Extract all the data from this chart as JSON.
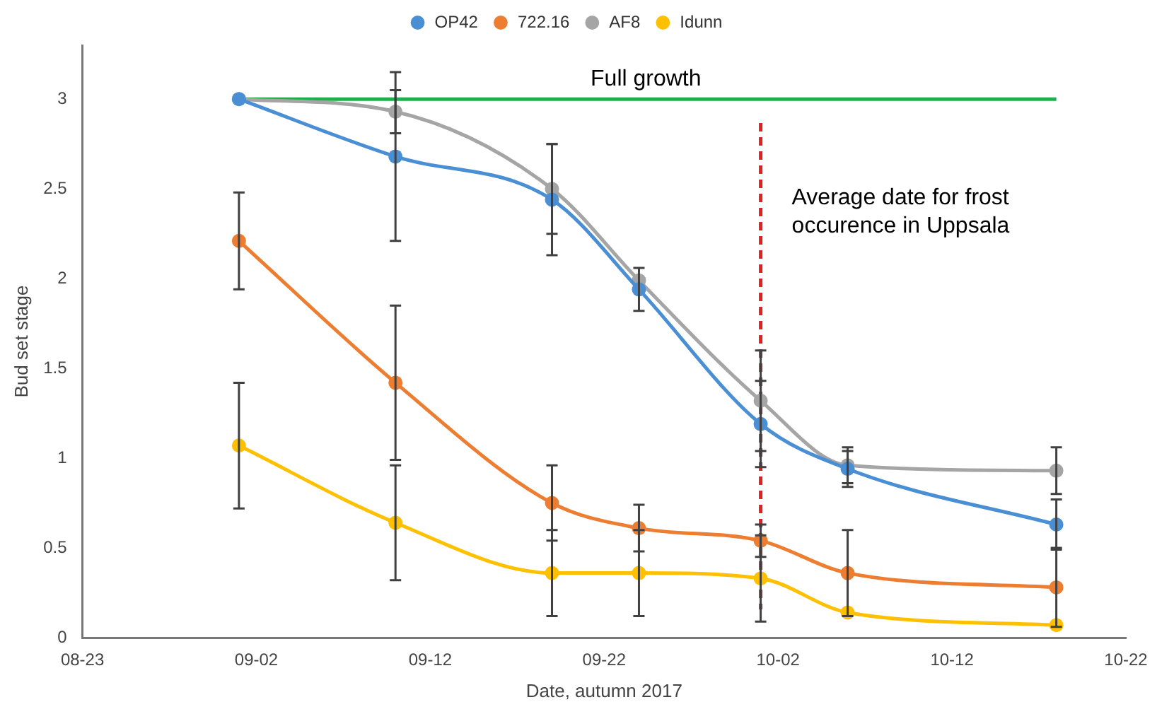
{
  "chart_data": {
    "type": "line",
    "xlabel": "Date, autumn 2017",
    "ylabel": "Bud set stage",
    "x": [
      "2017-09-01",
      "2017-09-10",
      "2017-09-19",
      "2017-09-24",
      "2017-10-01",
      "2017-10-06",
      "2017-10-18"
    ],
    "series": [
      {
        "name": "OP42",
        "color": "#4a8fd4",
        "values": [
          3.0,
          2.68,
          2.44,
          1.94,
          1.19,
          0.94,
          0.63
        ],
        "errors": [
          null,
          0.47,
          0.31,
          0.12,
          0.24,
          0.1,
          0.14
        ]
      },
      {
        "name": "722.16",
        "color": "#ed7d31",
        "values": [
          2.21,
          1.42,
          0.75,
          0.61,
          0.54,
          0.36,
          0.28
        ],
        "errors": [
          0.27,
          0.43,
          0.21,
          0.13,
          0.09,
          0.24,
          0.22
        ]
      },
      {
        "name": "AF8",
        "color": "#a5a5a5",
        "values": [
          3.0,
          2.93,
          2.5,
          1.99,
          1.32,
          0.96,
          0.93
        ],
        "errors": [
          null,
          0.12,
          0.25,
          null,
          0.28,
          0.1,
          0.13
        ]
      },
      {
        "name": "Idunn",
        "color": "#ffc000",
        "values": [
          1.07,
          0.64,
          0.36,
          0.36,
          0.33,
          0.14,
          0.07
        ],
        "errors": [
          0.35,
          0.32,
          0.24,
          0.24,
          0.24,
          null,
          null
        ]
      },
      {
        "color": "#1fae4b",
        "marker": "none",
        "x": [
          "2017-09-01",
          "2017-10-18"
        ],
        "values": [
          3,
          3
        ]
      }
    ],
    "ref_lines": [
      {
        "axis": "x",
        "value": "2017-10-01",
        "label": "Average date for frost occurence in Uppsala",
        "color": "#e02020",
        "line_style": "dashed"
      }
    ],
    "annotations": [
      "Full growth"
    ],
    "xlim": [
      "2017-08-23",
      "2017-10-22"
    ],
    "xticks": [
      {
        "value": "2017-08-23",
        "label": "08-23"
      },
      {
        "value": "2017-09-02",
        "label": "09-02"
      },
      {
        "value": "2017-09-12",
        "label": "09-12"
      },
      {
        "value": "2017-09-22",
        "label": "09-22"
      },
      {
        "value": "2017-10-02",
        "label": "10-02"
      },
      {
        "value": "2017-10-12",
        "label": "10-12"
      },
      {
        "value": "2017-10-22",
        "label": "10-22"
      }
    ],
    "ylim": [
      0,
      3.3
    ],
    "yticks": [
      0,
      0.5,
      1,
      1.5,
      2,
      2.5,
      3
    ],
    "grid": false,
    "legend": "top",
    "marker": "circle",
    "line_style": "solid"
  }
}
